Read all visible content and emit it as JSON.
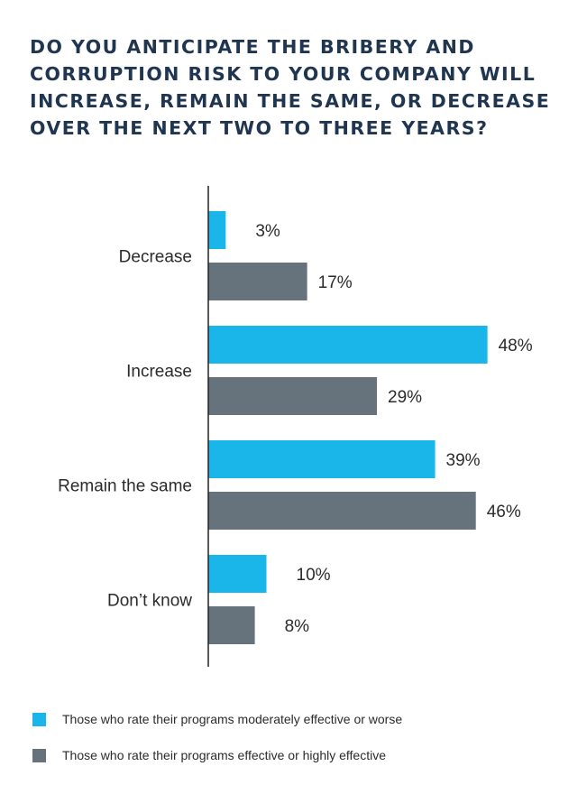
{
  "title_lines": [
    "DO YOU ANTICIPATE THE BRIBERY AND",
    "CORRUPTION RISK TO YOUR COMPANY WILL",
    "INCREASE, REMAIN THE SAME, OR DECREASE",
    "OVER THE NEXT TWO TO THREE YEARS?"
  ],
  "colors": {
    "series1": "#1ab6ea",
    "series2": "#66737c",
    "title": "#1f3550",
    "text": "#2b2b2b",
    "axis": "#222222"
  },
  "chart_data": {
    "type": "bar",
    "orientation": "horizontal",
    "title": "DO YOU ANTICIPATE THE BRIBERY AND CORRUPTION RISK TO YOUR COMPANY WILL INCREASE, REMAIN THE SAME, OR DECREASE OVER THE NEXT TWO TO THREE YEARS?",
    "categories": [
      "Decrease",
      "Increase",
      "Remain the same",
      "Don’t know"
    ],
    "series": [
      {
        "name": "Those who rate their programs moderately effective or worse",
        "values": [
          3,
          48,
          39,
          10
        ],
        "labels": [
          "3%",
          "48%",
          "39%",
          "10%"
        ]
      },
      {
        "name": "Those who rate their programs effective or highly effective",
        "values": [
          17,
          29,
          46,
          8
        ],
        "labels": [
          "17%",
          "29%",
          "46%",
          "8%"
        ]
      }
    ],
    "unit": "%",
    "xlim": [
      0,
      60
    ],
    "grid": false,
    "legend_position": "bottom-left"
  }
}
